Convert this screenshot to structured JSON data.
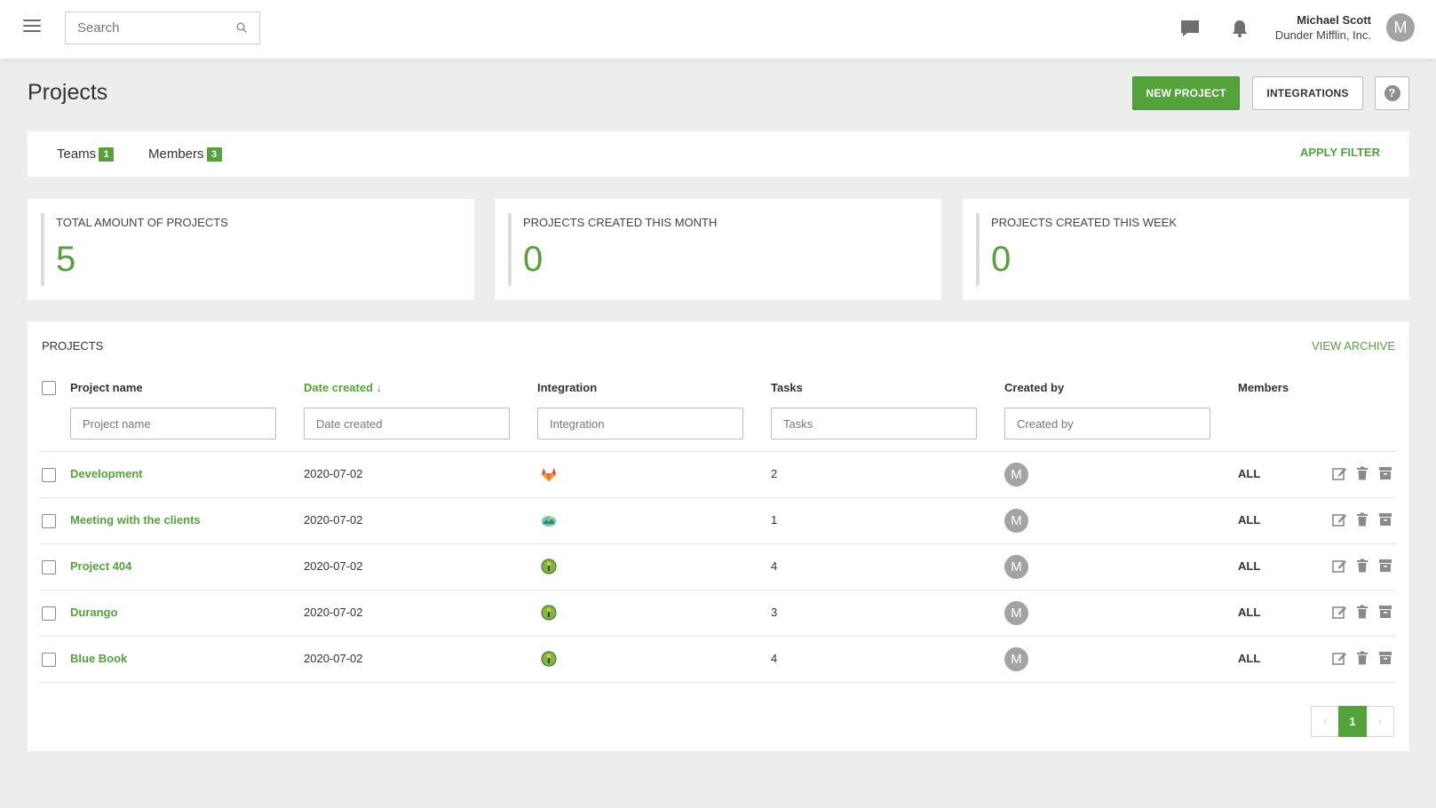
{
  "header": {
    "search_placeholder": "Search",
    "user_name": "Michael Scott",
    "user_company": "Dunder Mifflin, Inc.",
    "user_initial": "M",
    "icons": [
      "hamburger-menu-icon",
      "search-icon",
      "chat-icon",
      "bell-icon"
    ]
  },
  "page": {
    "title": "Projects",
    "new_project_label": "NEW PROJECT",
    "integrations_label": "INTEGRATIONS",
    "help_label": "?"
  },
  "filter": {
    "teams_label": "Teams",
    "teams_count": "1",
    "members_label": "Members",
    "members_count": "3",
    "apply_label": "APPLY FILTER"
  },
  "stats": [
    {
      "label": "TOTAL AMOUNT OF PROJECTS",
      "value": "5"
    },
    {
      "label": "PROJECTS CREATED THIS MONTH",
      "value": "0"
    },
    {
      "label": "PROJECTS CREATED THIS WEEK",
      "value": "0"
    }
  ],
  "projects_panel": {
    "title": "PROJECTS",
    "view_archive_label": "VIEW ARCHIVE",
    "columns": {
      "project_name": "Project name",
      "date_created": "Date created ↓",
      "integration": "Integration",
      "tasks": "Tasks",
      "created_by": "Created by",
      "members": "Members"
    },
    "filter_placeholders": {
      "project_name": "Project name",
      "date_created": "Date created",
      "integration": "Integration",
      "tasks": "Tasks",
      "created_by": "Created by"
    },
    "rows": [
      {
        "name": "Development",
        "date": "2020-07-02",
        "integration_icon": "gitlab-icon",
        "tasks": "2",
        "created_by_initial": "M",
        "members": "ALL"
      },
      {
        "name": "Meeting with the clients",
        "date": "2020-07-02",
        "integration_icon": "cloud-landscape-icon",
        "tasks": "1",
        "created_by_initial": "M",
        "members": "ALL"
      },
      {
        "name": "Project 404",
        "date": "2020-07-02",
        "integration_icon": "globe-integration-icon",
        "tasks": "4",
        "created_by_initial": "M",
        "members": "ALL"
      },
      {
        "name": "Durango",
        "date": "2020-07-02",
        "integration_icon": "globe-integration-icon",
        "tasks": "3",
        "created_by_initial": "M",
        "members": "ALL"
      },
      {
        "name": "Blue Book",
        "date": "2020-07-02",
        "integration_icon": "globe-integration-icon",
        "tasks": "4",
        "created_by_initial": "M",
        "members": "ALL"
      }
    ],
    "row_actions": [
      "edit-icon",
      "trash-icon",
      "archive-icon"
    ],
    "pagination": {
      "prev": "‹",
      "current": "1",
      "next": "›"
    }
  },
  "colors": {
    "accent": "#54a23a",
    "background": "#eceeee",
    "avatar": "#a3a3a3"
  }
}
